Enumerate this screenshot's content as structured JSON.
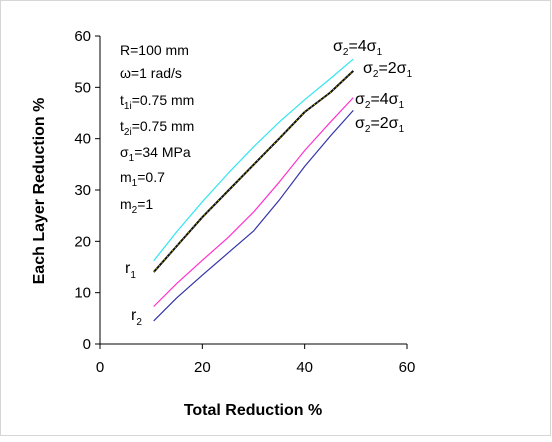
{
  "chart_data": {
    "type": "line",
    "xlabel": "Total Reduction %",
    "ylabel": "Each Layer Reduction %",
    "xlim": [
      0,
      60
    ],
    "ylim": [
      0,
      60
    ],
    "xticks": [
      "0",
      "20",
      "40",
      "60"
    ],
    "yticks": [
      "0",
      "10",
      "20",
      "30",
      "40",
      "50",
      "60"
    ],
    "grid": false,
    "legend": "none",
    "parameters": [
      {
        "main": "R=100 mm"
      },
      {
        "main": "ω=1 rad/s"
      },
      {
        "main": "t",
        "sub": "1i",
        "rest": "=0.75 mm"
      },
      {
        "main": "t",
        "sub": "2i",
        "rest": "=0.75 mm"
      },
      {
        "main": "σ",
        "sub": "1",
        "rest": "=34 MPa"
      },
      {
        "main": "m",
        "sub": "1",
        "rest": "=0.7"
      },
      {
        "main": "m",
        "sub": "2",
        "rest": "=1"
      }
    ],
    "group_labels": [
      {
        "main": "r",
        "sub": "1"
      },
      {
        "main": "r",
        "sub": "2"
      }
    ],
    "series": [
      {
        "group": "r1",
        "label": {
          "a": "σ",
          "a_sub": "2",
          "mid": "=4σ",
          "b_sub": "1"
        },
        "color": "#33e5f0",
        "x": [
          10.5,
          15,
          20,
          25,
          30,
          35,
          40,
          45,
          49.5
        ],
        "y": [
          16.2,
          21.9,
          27.7,
          33.2,
          38.4,
          43.2,
          47.6,
          51.7,
          55.5
        ]
      },
      {
        "group": "r1",
        "label": {
          "a": "σ",
          "a_sub": "2",
          "mid": "=2σ",
          "b_sub": "1"
        },
        "color": "#111111",
        "marker_color": "#c8c000",
        "x": [
          10.5,
          15,
          20,
          25,
          30,
          35,
          40,
          45,
          49.5
        ],
        "y": [
          14.0,
          19.1,
          24.7,
          29.8,
          34.9,
          40.0,
          45.2,
          49.0,
          53.2
        ]
      },
      {
        "group": "r2",
        "label": {
          "a": "σ",
          "a_sub": "2",
          "mid": "=4σ",
          "b_sub": "1"
        },
        "color": "#ff33cc",
        "x": [
          10.5,
          15,
          20,
          25,
          30,
          35,
          40,
          45,
          49.5
        ],
        "y": [
          7.3,
          11.8,
          16.3,
          20.7,
          25.7,
          31.5,
          37.7,
          43.2,
          48.0
        ]
      },
      {
        "group": "r2",
        "label": {
          "a": "σ",
          "a_sub": "2",
          "mid": "=2σ",
          "b_sub": "1"
        },
        "color": "#3333aa",
        "x": [
          10.5,
          15,
          20,
          25,
          30,
          35,
          40,
          45,
          49.5
        ],
        "y": [
          4.5,
          9.0,
          13.4,
          17.7,
          22.0,
          28.0,
          34.6,
          40.5,
          45.5
        ]
      }
    ]
  }
}
